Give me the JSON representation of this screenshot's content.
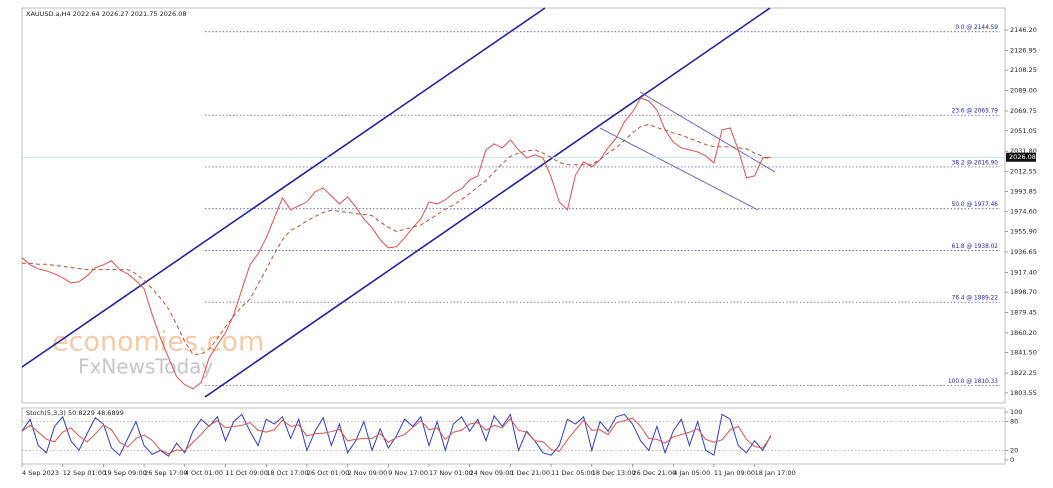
{
  "chart_data": [
    {
      "type": "line",
      "title": "XAUUSD.a,H4  2022.64 2026.27 2021.75 2026.08",
      "watermark": [
        "economies.com",
        "FxNewsToday"
      ],
      "categories": [
        "4 Sep 2023",
        null,
        null,
        null,
        null,
        "12 Sep 01:00",
        null,
        null,
        null,
        null,
        "19 Sep 09:00",
        null,
        null,
        null,
        null,
        "26 Sep 17:00",
        null,
        null,
        null,
        null,
        "4 Oct 01:00",
        null,
        null,
        null,
        null,
        "11 Oct 09:00",
        null,
        null,
        null,
        null,
        "18 Oct 17:00",
        null,
        null,
        null,
        null,
        "26 Oct 01:00",
        null,
        null,
        null,
        null,
        "2 Nov 09:00",
        null,
        null,
        null,
        null,
        "9 Nov 17:00",
        null,
        null,
        null,
        null,
        "17 Nov 01:00",
        null,
        null,
        null,
        null,
        "24 Nov 09:00",
        null,
        null,
        null,
        null,
        "1 Dec 21:00",
        null,
        null,
        null,
        null,
        "11 Dec 05:00",
        null,
        null,
        null,
        null,
        "18 Dec 13:00",
        null,
        null,
        null,
        null,
        "26 Dec 21:00",
        null,
        null,
        null,
        null,
        "4 Jan 05:00",
        null,
        null,
        null,
        null,
        "11 Jan 09:00",
        null,
        null,
        null,
        null,
        "18 Jan 17:00",
        null,
        null
      ],
      "series": [
        {
          "color": "#d9534f",
          "values": [
            1931.1,
            1924.5,
            1920.7,
            1918.8,
            1916.0,
            1912.2,
            1907.5,
            1908.5,
            1914.1,
            1921.7,
            1924.5,
            1928.3,
            1919.8,
            1916.0,
            1909.4,
            1901.9,
            1877.3,
            1855.6,
            1836.8,
            1818.8,
            1811.3,
            1807.5,
            1813.2,
            1836.8,
            1849.0,
            1860.3,
            1877.3,
            1900.9,
            1924.5,
            1934.9,
            1950.0,
            1968.8,
            1987.7,
            1976.4,
            1980.2,
            1983.9,
            1993.4,
            1997.1,
            1989.6,
            1982.0,
            1988.7,
            1979.2,
            1967.9,
            1959.4,
            1948.1,
            1940.5,
            1941.5,
            1950.0,
            1959.4,
            1967.9,
            1983.9,
            1982.0,
            1985.8,
            1992.4,
            1996.2,
            2004.7,
            2008.5,
            2033.0,
            2038.7,
            2034.9,
            2042.4,
            2033.0,
            2025.4,
            2028.3,
            2025.4,
            2007.5,
            1983.9,
            1976.4,
            2009.4,
            2021.7,
            2017.0,
            2023.6,
            2034.9,
            2044.3,
            2059.4,
            2068.8,
            2082.0,
            2079.2,
            2070.7,
            2051.9,
            2040.5,
            2034.9,
            2033.0,
            2031.1,
            2027.3,
            2020.7,
            2051.9,
            2053.7,
            2033.0,
            2006.6,
            2008.5,
            2025.4,
            2026.1
          ]
        },
        {
          "color": "#b5523b",
          "dashed": true,
          "values": [
            1926,
            1926,
            1925,
            1925,
            1924,
            1923,
            1922,
            1921,
            1920,
            1920,
            1920,
            1920,
            1920,
            1920,
            1916,
            1910,
            1902,
            1893,
            1883,
            1868,
            1852,
            1840,
            1840,
            1845,
            1855,
            1866,
            1876,
            1885,
            1892,
            1906,
            1920,
            1935,
            1948,
            1957,
            1961,
            1966,
            1970,
            1974,
            1976,
            1975,
            1974,
            1973,
            1972,
            1971,
            1965,
            1960,
            1956,
            1958,
            1960,
            1962,
            1967,
            1972,
            1977,
            1981,
            1986,
            1992,
            1998,
            2004,
            2012,
            2020,
            2027,
            2030,
            2032,
            2033,
            2030,
            2026,
            2021,
            2019,
            2019,
            2019,
            2019,
            2024,
            2030,
            2035,
            2042,
            2049,
            2055,
            2057,
            2054,
            2052,
            2049,
            2047,
            2044,
            2041,
            2038,
            2036,
            2036,
            2036,
            2035,
            2034,
            2030,
            2027,
            2024
          ]
        }
      ],
      "ylim": [
        1794,
        2167
      ],
      "yticks": [
        {
          "value": 2146.2,
          "label": "2146.20"
        },
        2126.95,
        2108.25,
        {
          "value": 2089,
          "label": "2089.00"
        },
        2069.75,
        2051.05,
        {
          "value": 2031.8,
          "label": "2031.80"
        },
        2012.55,
        1993.85,
        {
          "value": 1974.6,
          "label": "1974.60"
        },
        {
          "value": 1955.9,
          "label": "1955.90"
        },
        1936.65,
        {
          "value": 1917.4,
          "label": "1917.40"
        },
        {
          "value": 1898.7,
          "label": "1898.70"
        },
        1879.45,
        {
          "value": 1860.2,
          "label": "1860.20"
        },
        {
          "value": 1841.5,
          "label": "1841.50"
        },
        1822.25,
        1803.55
      ],
      "fib_levels": [
        {
          "value": 2144.59,
          "label": "0.0 @ 2144.59"
        },
        {
          "value": 2065.79,
          "label": "23.6 @ 2065.79"
        },
        {
          "value": 2016.9,
          "label": "38.2 @ 2016.90"
        },
        {
          "value": 1977.46,
          "label": "50.0 @ 1977.46"
        },
        {
          "value": 1938.02,
          "label": "61.8 @ 1938.02"
        },
        {
          "value": 1889.22,
          "label": "76.4 @ 1889.22"
        },
        {
          "value": 1810.33,
          "label": "100.0 @ 1810.33"
        }
      ],
      "last_price": 2026.08
    },
    {
      "type": "line",
      "title": "Stoch(5,3,3) 50.8229 48.6899",
      "series": [
        {
          "color": "#2f3fbf",
          "values": [
            60,
            85,
            30,
            15,
            70,
            90,
            40,
            20,
            55,
            88,
            75,
            25,
            10,
            45,
            80,
            30,
            12,
            20,
            8,
            35,
            15,
            60,
            85,
            70,
            90,
            40,
            80,
            95,
            60,
            30,
            85,
            75,
            90,
            45,
            85,
            20,
            60,
            88,
            30,
            75,
            15,
            40,
            80,
            20,
            65,
            25,
            50,
            85,
            70,
            90,
            30,
            80,
            20,
            75,
            90,
            60,
            85,
            40,
            92,
            70,
            95,
            20,
            60,
            40,
            15,
            10,
            30,
            85,
            75,
            90,
            20,
            80,
            60,
            90,
            95,
            75,
            40,
            20,
            70,
            15,
            60,
            85,
            30,
            80,
            20,
            10,
            95,
            85,
            30,
            15,
            40,
            20,
            51
          ]
        },
        {
          "color": "#d9534f",
          "values": [
            60,
            72,
            58,
            43,
            38,
            58,
            67,
            50,
            38,
            54,
            73,
            63,
            37,
            27,
            45,
            52,
            41,
            21,
            13,
            21,
            19,
            37,
            53,
            72,
            82,
            67,
            70,
            72,
            78,
            62,
            58,
            63,
            83,
            70,
            73,
            50,
            55,
            56,
            59,
            64,
            40,
            43,
            45,
            45,
            55,
            37,
            47,
            53,
            68,
            82,
            63,
            67,
            43,
            58,
            62,
            75,
            78,
            62,
            72,
            67,
            86,
            62,
            58,
            40,
            38,
            22,
            18,
            42,
            63,
            83,
            62,
            63,
            53,
            77,
            82,
            87,
            70,
            45,
            43,
            35,
            48,
            53,
            58,
            65,
            43,
            37,
            42,
            63,
            70,
            43,
            28,
            25,
            49
          ]
        }
      ],
      "ylim": [
        0,
        100
      ],
      "yticks": [
        0,
        20,
        80,
        100
      ],
      "levels": [
        20,
        80
      ]
    }
  ]
}
